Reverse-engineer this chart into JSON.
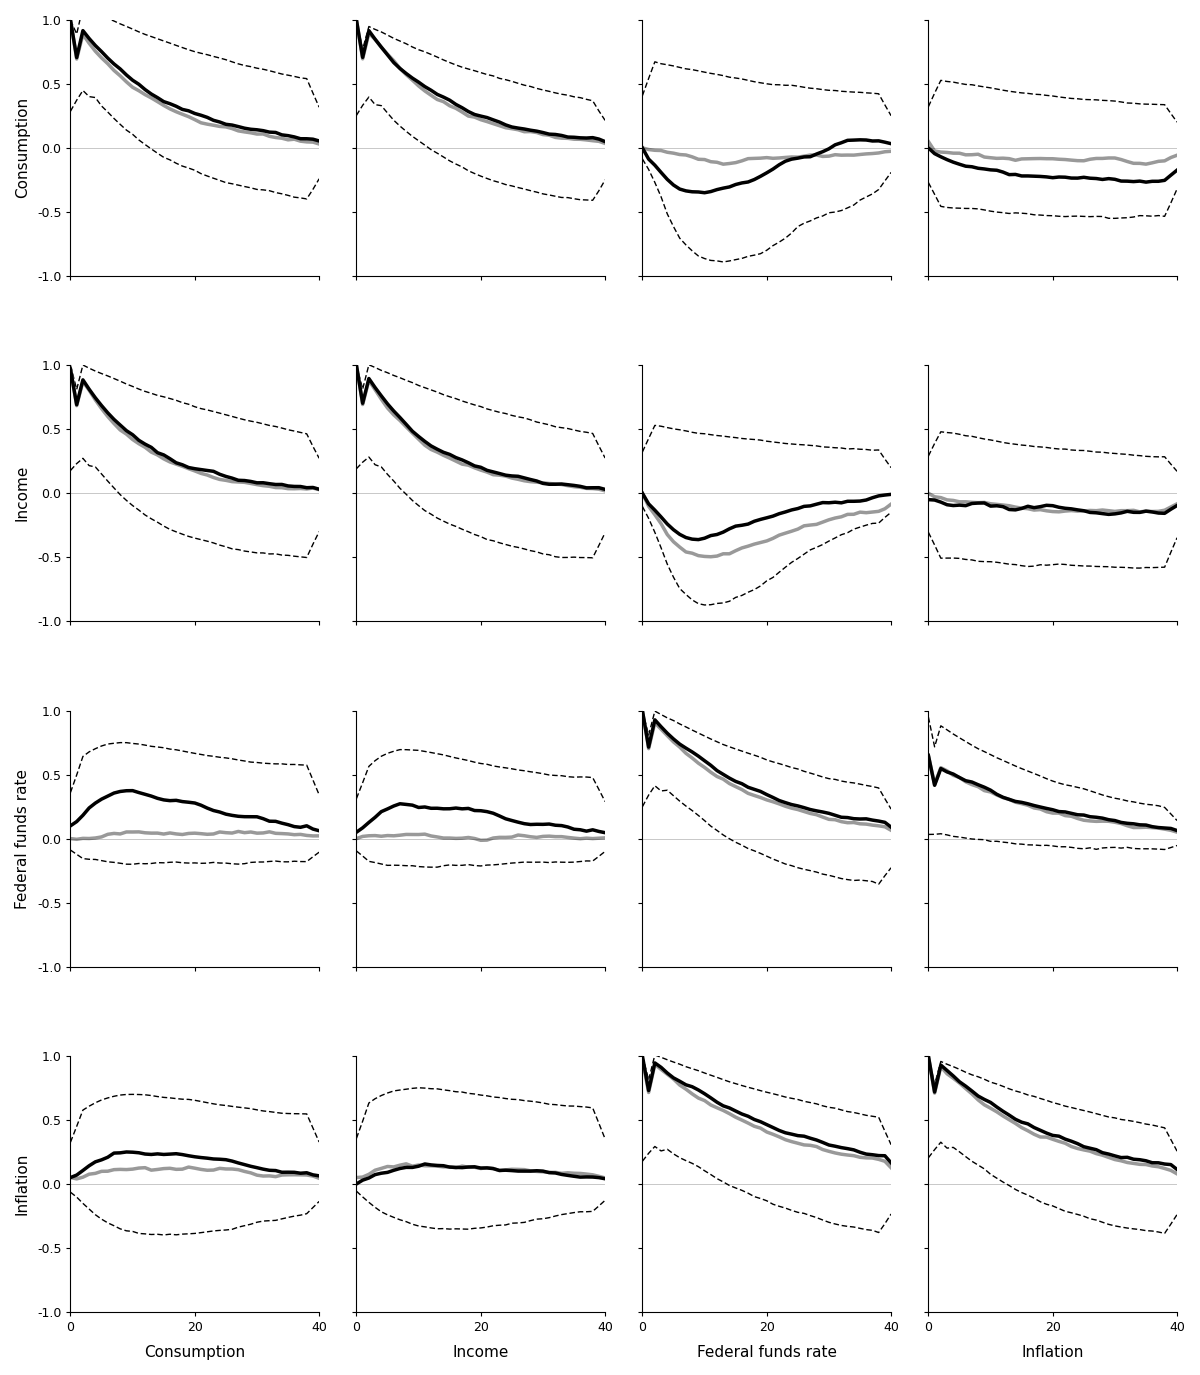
{
  "row_labels": [
    "Consumption",
    "Income",
    "Federal funds rate",
    "Inflation"
  ],
  "col_labels": [
    "Consumption",
    "Income",
    "Federal funds rate",
    "Inflation"
  ],
  "xlim": [
    0,
    40
  ],
  "ylim": [
    -1.0,
    1.0
  ],
  "yticks": [
    -1.0,
    -0.5,
    0.0,
    0.5,
    1.0
  ],
  "xticks": [
    0,
    20,
    40
  ],
  "n_lags": 41,
  "line_color_main": "#000000",
  "line_color_alt": "#999999",
  "line_color_ci": "#000000",
  "lw_main": 2.5,
  "lw_alt": 2.5,
  "lw_ci": 1.0,
  "background": "#ffffff"
}
